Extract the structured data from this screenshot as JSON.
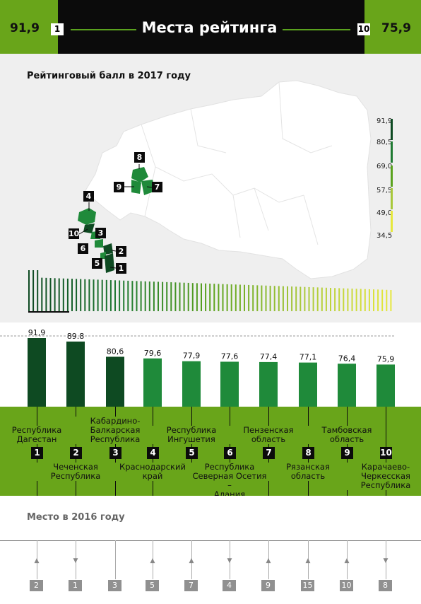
{
  "header": {
    "title": "Места рейтинга",
    "left_value": "91,9",
    "right_value": "75,9",
    "left_rank": "1",
    "right_rank": "10"
  },
  "map": {
    "subtitle": "Рейтинговый балл в 2017 году",
    "markers": [
      "8",
      "9",
      "7",
      "4",
      "10",
      "3",
      "6",
      "2",
      "5",
      "1"
    ]
  },
  "legend": {
    "labels": [
      "91,9",
      "80,5",
      "69,0",
      "57,5",
      "49,0",
      "34,5"
    ],
    "colors": [
      "#0e4a22",
      "#1f7a32",
      "#5aa21e",
      "#a8c83a",
      "#e6e83c"
    ]
  },
  "chart_data": {
    "type": "bar",
    "categories": [
      "Республика Дагестан",
      "Чеченская Республика",
      "Кабардино-Балкарская Республика",
      "Краснодарский край",
      "Республика Ингушетия",
      "Республика Северная Осетия – Алания",
      "Пензенская область",
      "Рязанская область",
      "Тамбовская область",
      "Карачаево-Черкесская Республика"
    ],
    "values": [
      91.9,
      89.8,
      80.6,
      79.6,
      77.9,
      77.6,
      77.4,
      77.1,
      76.4,
      75.9
    ],
    "value_labels": [
      "91,9",
      "89.8",
      "80,6",
      "79,6",
      "77,9",
      "77,6",
      "77,4",
      "77,1",
      "76,4",
      "75,9"
    ],
    "ranks": [
      "1",
      "2",
      "3",
      "4",
      "5",
      "6",
      "7",
      "8",
      "9",
      "10"
    ],
    "bar_colors": [
      "#0e4a22",
      "#0e4a22",
      "#0e4a22",
      "#1f8a3a",
      "#1f8a3a",
      "#1f8a3a",
      "#1f8a3a",
      "#1f8a3a",
      "#1f8a3a",
      "#1f8a3a"
    ],
    "names": [
      [
        "Республика",
        "Дагестан"
      ],
      [
        "Чеченская",
        "Республика"
      ],
      [
        "Кабардино-",
        "Балкарская",
        "Республика"
      ],
      [
        "Краснодарский",
        "край"
      ],
      [
        "Республика",
        "Ингушетия"
      ],
      [
        "Республика",
        "Северная Осетия –",
        "Алания"
      ],
      [
        "Пензенская",
        "область"
      ],
      [
        "Рязанская",
        "область"
      ],
      [
        "Тамбовская",
        "область"
      ],
      [
        "Карачаево-",
        "Черкесская",
        "Республика"
      ]
    ],
    "ylim": [
      0,
      100
    ]
  },
  "prev_year": {
    "title": "Место в 2016 году",
    "places": [
      "2",
      "1",
      "3",
      "5",
      "7",
      "4",
      "9",
      "15",
      "10",
      "8"
    ],
    "trend": [
      "up",
      "down",
      "none",
      "up",
      "up",
      "down",
      "up",
      "up",
      "up",
      "down"
    ]
  }
}
